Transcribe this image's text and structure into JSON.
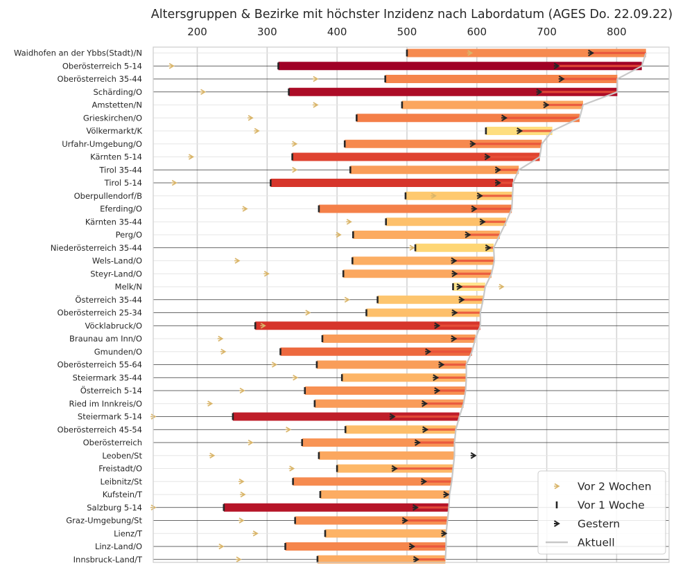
{
  "chart_data": {
    "type": "bar",
    "title": "Altersgruppen & Bezirke mit höchster Inzidenz nach Labordatum (AGES Do. 22.09.22)",
    "xlabel": "",
    "ylabel": "",
    "xlim": [
      137,
      875
    ],
    "xticks": [
      200,
      300,
      400,
      500,
      600,
      700,
      800
    ],
    "x_axis_position": "top",
    "grid": true,
    "legend": {
      "position": "bottom-right",
      "entries": [
        "Vor 2 Wochen",
        "Vor 1 Woche",
        "Gestern",
        "Aktuell"
      ]
    },
    "colors": {
      "prev2w_marker": "#d9b56a",
      "prev1w_marker": "#262626",
      "yesterday_marker": "#262626",
      "current_line": "#c8c8c8",
      "grid": "#d4d4d4",
      "row_line_dark": "#333333",
      "decrease_bar": "#273a7a",
      "change_overlay": "#e8503a"
    },
    "categories": [
      "Waidhofen an der Ybbs(Stadt)/N",
      "Oberösterreich 5-14",
      "Oberösterreich 35-44",
      "Schärding/O",
      "Amstetten/N",
      "Grieskirchen/O",
      "Völkermarkt/K",
      "Urfahr-Umgebung/O",
      "Kärnten 5-14",
      "Tirol 35-44",
      "Tirol 5-14",
      "Oberpullendorf/B",
      "Eferding/O",
      "Kärnten 35-44",
      "Perg/O",
      "Niederösterreich 35-44",
      "Wels-Land/O",
      "Steyr-Land/O",
      "Melk/N",
      "Österreich 35-44",
      "Oberösterreich 25-34",
      "Vöcklabruck/O",
      "Braunau am Inn/O",
      "Gmunden/O",
      "Oberösterreich 55-64",
      "Steiermark 35-44",
      "Österreich 5-14",
      "Ried im Innkreis/O",
      "Steiermark 5-14",
      "Oberösterreich 45-54",
      "Oberösterreich",
      "Leoben/St",
      "Freistadt/O",
      "Leibnitz/St",
      "Kufstein/T",
      "Salzburg 5-14",
      "Graz-Umgebung/St",
      "Lienz/T",
      "Linz-Land/O",
      "Innsbruck-Land/T"
    ],
    "series": [
      {
        "name": "Vor 2 Wochen",
        "values": [
          590,
          163,
          369,
          208,
          369,
          276,
          285,
          339,
          191,
          339,
          167,
          538,
          268,
          417,
          402,
          507,
          257,
          299,
          635,
          414,
          358,
          294,
          233,
          237,
          310,
          340,
          264,
          218,
          137,
          330,
          276,
          221,
          335,
          263,
          265,
          137,
          263,
          283,
          234,
          259
        ]
      },
      {
        "name": "Vor 1 Woche",
        "values": [
          500,
          316,
          469,
          331,
          493,
          428,
          613,
          411,
          336,
          419,
          305,
          498,
          374,
          470,
          423,
          512,
          422,
          409,
          566,
          458,
          442,
          283,
          379,
          319,
          371,
          407,
          354,
          368,
          251,
          412,
          350,
          374,
          400,
          337,
          376,
          238,
          340,
          383,
          326,
          372
        ]
      },
      {
        "name": "Gestern",
        "values": [
          763,
          714,
          721,
          689,
          699,
          639,
          661,
          594,
          615,
          630,
          630,
          604,
          596,
          608,
          587,
          616,
          567,
          568,
          575,
          578,
          568,
          543,
          567,
          530,
          549,
          541,
          543,
          525,
          479,
          526,
          515,
          595,
          482,
          524,
          556,
          512,
          497,
          553,
          507,
          513
        ]
      },
      {
        "name": "Aktuell",
        "values": [
          842,
          836,
          801,
          801,
          752,
          747,
          708,
          693,
          690,
          660,
          652,
          651,
          650,
          642,
          633,
          624,
          625,
          621,
          612,
          609,
          605,
          605,
          598,
          593,
          585,
          585,
          584,
          581,
          575,
          570,
          568,
          568,
          566,
          564,
          561,
          560,
          558,
          556,
          556,
          555
        ]
      }
    ]
  }
}
